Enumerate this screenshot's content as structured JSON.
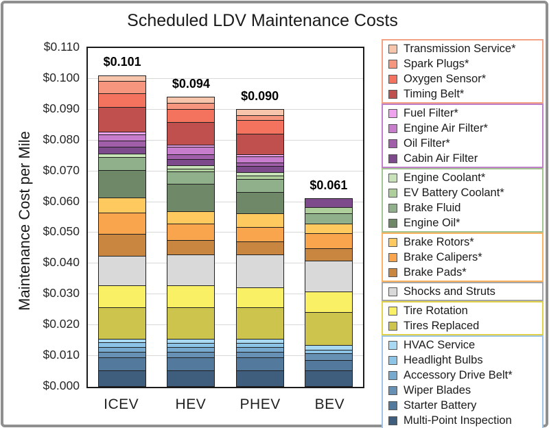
{
  "title": "Scheduled LDV Maintenance Costs",
  "ylabel": "Maintenance Cost per Mile",
  "chart_data": {
    "type": "bar",
    "subtype": "stacked",
    "categories": [
      "ICEV",
      "HEV",
      "PHEV",
      "BEV"
    ],
    "totals": [
      0.101,
      0.094,
      0.09,
      0.061
    ],
    "totals_labels": [
      "$0.101",
      "$0.094",
      "$0.090",
      "$0.061"
    ],
    "ylim": [
      0,
      0.11
    ],
    "ytick_step": 0.01,
    "grid": true,
    "legend_position": "right",
    "yticks": [
      "$0.000",
      "$0.010",
      "$0.020",
      "$0.030",
      "$0.040",
      "$0.050",
      "$0.060",
      "$0.070",
      "$0.080",
      "$0.090",
      "$0.100",
      "$0.110"
    ],
    "series": [
      {
        "name": "Multi-Point Inspection",
        "color": "#3F5E7D",
        "values": [
          0.0052,
          0.0052,
          0.0052,
          0.0052
        ]
      },
      {
        "name": "Starter Battery",
        "color": "#537A9C",
        "values": [
          0.0041,
          0.0041,
          0.0041,
          0.0033
        ]
      },
      {
        "name": "Wiper Blades",
        "color": "#6691B4",
        "values": [
          0.0019,
          0.0019,
          0.0019,
          0.0022
        ]
      },
      {
        "name": "Accessory Drive Belt*",
        "color": "#78A9CF",
        "values": [
          0.0015,
          0.0015,
          0.0015,
          0
        ]
      },
      {
        "name": "Headlight Bulbs",
        "color": "#8CC4E8",
        "values": [
          0.0015,
          0.0013,
          0.0013,
          0.0011
        ]
      },
      {
        "name": "HVAC Service",
        "color": "#A8D9F2",
        "values": [
          0.0011,
          0.0013,
          0.0013,
          0.0015
        ]
      },
      {
        "name": "Tires Replaced",
        "color": "#CDC44E",
        "values": [
          0.0104,
          0.0104,
          0.0104,
          0.0107
        ]
      },
      {
        "name": "Tire Rotation",
        "color": "#FAF065",
        "values": [
          0.0071,
          0.007,
          0.0064,
          0.0067
        ]
      },
      {
        "name": "Shocks and Struts",
        "color": "#D9D9D9",
        "values": [
          0.0095,
          0.01,
          0.0107,
          0.01
        ]
      },
      {
        "name": "Brake Pads*",
        "color": "#C98640",
        "values": [
          0.0071,
          0.0048,
          0.0041,
          0.0041
        ]
      },
      {
        "name": "Brake Calipers*",
        "color": "#F8A54E",
        "values": [
          0.007,
          0.0052,
          0.0048,
          0.0048
        ]
      },
      {
        "name": "Brake Rotors*",
        "color": "#FEC95F",
        "values": [
          0.0048,
          0.0041,
          0.0044,
          0.0033
        ]
      },
      {
        "name": "Engine Oil*",
        "color": "#6F8868",
        "values": [
          0.0089,
          0.0089,
          0.007,
          0
        ]
      },
      {
        "name": "Brake Fluid",
        "color": "#8FB08A",
        "values": [
          0.0044,
          0.0041,
          0.0041,
          0.0033
        ]
      },
      {
        "name": "EV Battery Coolant*",
        "color": "#AECE9C",
        "values": [
          0,
          0.0008,
          0.0011,
          0.0019
        ]
      },
      {
        "name": "Engine Coolant*",
        "color": "#C9E3B8",
        "values": [
          0.0011,
          0.0011,
          0.0011,
          0
        ]
      },
      {
        "name": "Cabin Air Filter",
        "color": "#7D4A8C",
        "values": [
          0.0022,
          0.002,
          0.002,
          0.003
        ]
      },
      {
        "name": "Oil Filter*",
        "color": "#A05FA8",
        "values": [
          0.0019,
          0.0015,
          0.0013,
          0
        ]
      },
      {
        "name": "Engine Air Filter*",
        "color": "#C77DCC",
        "values": [
          0.0021,
          0.0026,
          0.0019,
          0
        ]
      },
      {
        "name": "Fuel Filter*",
        "color": "#EFA3EF",
        "values": [
          0.0009,
          0.0007,
          0.0007,
          0
        ]
      },
      {
        "name": "Timing Belt*",
        "color": "#C0504D",
        "values": [
          0.008,
          0.0072,
          0.0067,
          0
        ]
      },
      {
        "name": "Oxygen Sensor*",
        "color": "#F4735E",
        "values": [
          0.0044,
          0.0044,
          0.0044,
          0
        ]
      },
      {
        "name": "Spark Plugs*",
        "color": "#F7967F",
        "values": [
          0.004,
          0.0018,
          0.0015,
          0
        ]
      },
      {
        "name": "Transmission Service*",
        "color": "#F7C5AC",
        "values": [
          0.0019,
          0.0021,
          0.0021,
          0
        ]
      }
    ],
    "legend": {
      "groups": [
        {
          "border": "#F2A185",
          "items": [
            {
              "label": "Transmission Service*",
              "color": "#F7C5AC"
            },
            {
              "label": "Spark Plugs*",
              "color": "#F7967F"
            },
            {
              "label": "Oxygen Sensor*",
              "color": "#F4735E"
            },
            {
              "label": "Timing Belt*",
              "color": "#C0504D"
            }
          ]
        },
        {
          "border": "#C07FC9",
          "items": [
            {
              "label": "Fuel Filter*",
              "color": "#EFA3EF"
            },
            {
              "label": "Engine Air Filter*",
              "color": "#C77DCC"
            },
            {
              "label": "Oil Filter*",
              "color": "#A05FA8"
            },
            {
              "label": "Cabin Air Filter",
              "color": "#7D4A8C"
            }
          ]
        },
        {
          "border": "#A3C48E",
          "items": [
            {
              "label": "Engine Coolant*",
              "color": "#C9E3B8"
            },
            {
              "label": "EV Battery Coolant*",
              "color": "#AECE9C"
            },
            {
              "label": "Brake Fluid",
              "color": "#8FB08A"
            },
            {
              "label": "Engine Oil*",
              "color": "#6F8868"
            }
          ]
        },
        {
          "border": "#F9B25F",
          "items": [
            {
              "label": "Brake Rotors*",
              "color": "#FEC95F"
            },
            {
              "label": "Brake Calipers*",
              "color": "#F8A54E"
            },
            {
              "label": "Brake Pads*",
              "color": "#C98640"
            }
          ]
        },
        {
          "border": "#A6A6A6",
          "items": [
            {
              "label": "Shocks and Struts",
              "color": "#D9D9D9"
            }
          ]
        },
        {
          "border": "#DFD24A",
          "items": [
            {
              "label": "Tire Rotation",
              "color": "#FAF065"
            },
            {
              "label": "Tires Replaced",
              "color": "#CDC44E"
            }
          ]
        },
        {
          "border": "#9DC3E6",
          "items": [
            {
              "label": "HVAC Service",
              "color": "#A8D9F2"
            },
            {
              "label": "Headlight Bulbs",
              "color": "#8CC4E8"
            },
            {
              "label": "Accessory Drive Belt*",
              "color": "#78A9CF"
            },
            {
              "label": "Wiper Blades",
              "color": "#6691B4"
            },
            {
              "label": "Starter Battery",
              "color": "#537A9C"
            },
            {
              "label": "Multi-Point Inspection",
              "color": "#3F5E7D"
            }
          ]
        }
      ]
    }
  }
}
